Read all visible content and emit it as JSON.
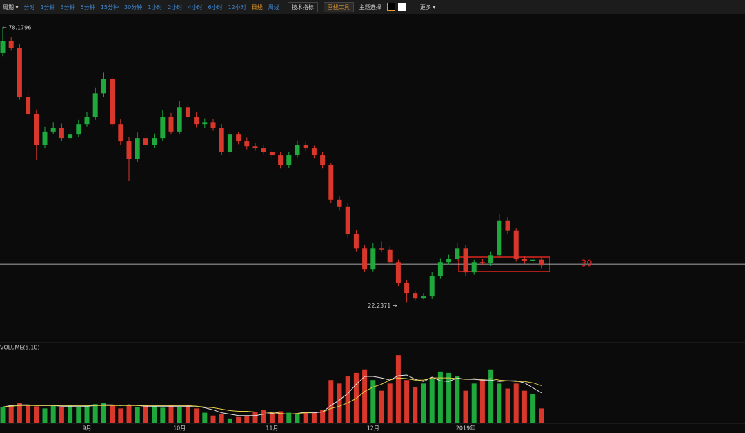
{
  "toolbar": {
    "period": "周期 ▾",
    "intervals": [
      "分时",
      "1分钟",
      "3分钟",
      "5分钟",
      "15分钟",
      "30分钟",
      "1小时",
      "2小时",
      "4小时",
      "6小时",
      "12小时",
      "日线",
      "周线"
    ],
    "active_interval": 11,
    "tech": "技术指标",
    "draw": "画线工具",
    "theme": "主题选择",
    "more": "更多 ▾"
  },
  "chart_data": {
    "type": "candlestick",
    "categories": [
      null,
      null,
      null,
      null,
      null,
      null,
      null,
      null,
      null,
      null,
      "9月",
      null,
      null,
      null,
      null,
      null,
      null,
      null,
      null,
      null,
      null,
      "10月",
      null,
      null,
      null,
      null,
      null,
      null,
      null,
      null,
      null,
      null,
      "11月",
      null,
      null,
      null,
      null,
      null,
      null,
      null,
      null,
      null,
      null,
      null,
      "12月",
      null,
      null,
      null,
      null,
      null,
      null,
      null,
      null,
      null,
      null,
      "2019年",
      null,
      null,
      null,
      null,
      null,
      null,
      null,
      null,
      null
    ],
    "open": [
      73.0,
      75.4,
      74.0,
      64.1,
      60.6,
      54.3,
      57.0,
      57.8,
      55.7,
      56.4,
      58.5,
      60.0,
      64.8,
      67.7,
      58.5,
      55.0,
      51.5,
      55.7,
      54.3,
      55.7,
      60.0,
      57.0,
      62.0,
      60.0,
      58.5,
      58.9,
      57.8,
      52.9,
      56.4,
      55.0,
      54.0,
      53.6,
      52.9,
      52.2,
      50.1,
      52.2,
      54.3,
      53.6,
      52.2,
      50.1,
      43.1,
      41.7,
      36.1,
      33.2,
      29.0,
      33.2,
      33.0,
      30.4,
      26.2,
      24.1,
      23.1,
      23.4,
      27.6,
      30.4,
      31.1,
      33.2,
      28.3,
      30.4,
      30.2,
      31.8,
      38.9,
      36.8,
      31.1,
      30.7,
      30.9
    ],
    "high": [
      78.1796,
      76.2,
      74.8,
      65.3,
      61.5,
      58.0,
      58.9,
      58.6,
      57.2,
      59.4,
      61.0,
      66.0,
      69.0,
      68.3,
      59.6,
      56.0,
      56.8,
      56.5,
      56.6,
      61.4,
      60.8,
      63.3,
      62.8,
      60.9,
      59.7,
      59.6,
      58.5,
      57.2,
      56.9,
      55.8,
      54.7,
      54.2,
      53.5,
      52.8,
      52.9,
      55.2,
      54.9,
      54.1,
      52.8,
      50.6,
      43.9,
      42.4,
      36.9,
      33.9,
      34.3,
      34.6,
      33.6,
      30.9,
      26.8,
      24.6,
      24.1,
      28.4,
      31.2,
      31.9,
      34.4,
      33.8,
      30.9,
      31.1,
      32.6,
      40.2,
      39.6,
      37.3,
      31.7,
      31.6,
      31.3
    ],
    "low": [
      72.4,
      73.5,
      63.5,
      59.8,
      51.2,
      53.6,
      56.5,
      55.0,
      55.1,
      55.9,
      58.0,
      59.4,
      64.1,
      57.9,
      54.2,
      47.0,
      50.8,
      53.6,
      53.7,
      55.1,
      56.4,
      56.5,
      59.3,
      57.9,
      57.8,
      57.2,
      52.2,
      52.3,
      54.4,
      53.4,
      53.1,
      52.3,
      51.6,
      49.5,
      49.6,
      51.7,
      53.0,
      51.6,
      49.5,
      42.4,
      40.9,
      35.4,
      32.6,
      28.4,
      28.5,
      32.4,
      29.8,
      25.5,
      22.2371,
      22.6,
      22.8,
      23.0,
      27.1,
      29.9,
      30.6,
      27.6,
      27.8,
      29.7,
      29.6,
      31.3,
      36.2,
      30.5,
      30.1,
      30.2,
      29.1
    ],
    "close": [
      75.4,
      74.0,
      64.1,
      60.6,
      54.3,
      57.0,
      57.8,
      55.7,
      56.4,
      58.5,
      60.0,
      64.8,
      67.7,
      58.5,
      55.0,
      51.5,
      55.7,
      54.3,
      55.7,
      60.0,
      57.0,
      62.0,
      60.0,
      58.5,
      58.9,
      57.8,
      52.9,
      56.4,
      55.0,
      54.0,
      53.6,
      52.9,
      52.2,
      50.1,
      52.2,
      54.3,
      53.6,
      52.2,
      50.1,
      43.1,
      41.7,
      36.1,
      33.2,
      29.0,
      33.2,
      33.0,
      30.4,
      26.2,
      24.1,
      23.1,
      23.4,
      27.6,
      30.4,
      31.1,
      33.2,
      28.3,
      30.4,
      30.2,
      31.8,
      38.9,
      36.8,
      31.1,
      30.7,
      30.9,
      29.7
    ],
    "ylim": [
      14,
      81
    ],
    "up_color": "#1fa83c",
    "down_color": "#d8372b",
    "high_label": "← 78.1796",
    "low_label": "22.2371 →",
    "level_line": 30,
    "volume": {
      "title": "VOLUME(5,10)",
      "ylim": [
        0,
        100
      ],
      "values": [
        22,
        25,
        28,
        24,
        23,
        20,
        25,
        22,
        24,
        22,
        23,
        26,
        28,
        24,
        20,
        25,
        22,
        24,
        23,
        21,
        24,
        22,
        25,
        20,
        14,
        10,
        12,
        6,
        8,
        10,
        15,
        18,
        14,
        16,
        14,
        12,
        15,
        14,
        18,
        60,
        55,
        65,
        70,
        75,
        60,
        45,
        55,
        95,
        60,
        50,
        55,
        62,
        72,
        70,
        66,
        45,
        55,
        60,
        75,
        55,
        48,
        55,
        45,
        40,
        20
      ],
      "ma5": [
        22,
        24,
        25,
        25,
        24,
        24,
        24,
        23,
        23,
        23,
        23,
        24,
        25,
        25,
        24,
        25,
        24,
        23,
        23,
        23,
        23,
        23,
        23,
        23,
        21,
        18,
        14,
        12,
        10,
        10,
        10,
        12,
        13,
        15,
        15,
        15,
        14,
        14,
        15,
        24,
        32,
        41,
        54,
        65,
        65,
        63,
        60,
        66,
        67,
        61,
        58,
        64,
        59,
        58,
        63,
        61,
        61,
        60,
        60,
        58,
        59,
        59,
        56,
        49,
        42
      ],
      "ma10": [
        22,
        23,
        24,
        24,
        24,
        24,
        24,
        24,
        24,
        24,
        24,
        24,
        24,
        24,
        24,
        24,
        24,
        24,
        24,
        24,
        24,
        24,
        24,
        23,
        22,
        21,
        19,
        17,
        16,
        16,
        15,
        15,
        14,
        13,
        12,
        13,
        14,
        15,
        15,
        20,
        23,
        28,
        34,
        44,
        50,
        54,
        60,
        63,
        62,
        60,
        60,
        63,
        63,
        63,
        62,
        61,
        62,
        61,
        62,
        60,
        59,
        58,
        58,
        56,
        52
      ],
      "ma5_color": "#e6e6e6",
      "ma10_color": "#e3cf4a"
    }
  }
}
